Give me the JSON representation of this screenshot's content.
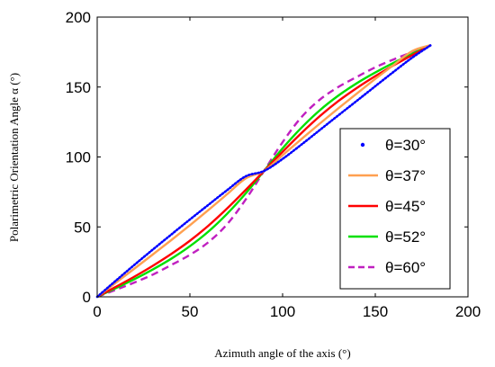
{
  "chart_data": {
    "type": "line",
    "xlabel": "Azimuth angle of the axis (°)",
    "ylabel": "Polarimetric Orientation Angle α (°)",
    "xlim": [
      0,
      200
    ],
    "ylim": [
      0,
      200
    ],
    "xticks": [
      "0",
      "50",
      "100",
      "150",
      "200"
    ],
    "yticks": [
      "0",
      "50",
      "100",
      "150",
      "200"
    ],
    "grid": false,
    "legend_position": "right",
    "x": [
      0,
      10,
      20,
      30,
      40,
      50,
      60,
      70,
      80,
      90,
      100,
      110,
      120,
      130,
      140,
      150,
      160,
      170,
      180
    ],
    "series": [
      {
        "name": "θ=30°",
        "theta": 30,
        "color": "#0000ff",
        "style": "dots",
        "values": [
          0,
          11.5,
          22.8,
          33.8,
          44.6,
          55.3,
          65.8,
          76.2,
          86.1,
          90,
          98.6,
          108.7,
          119.2,
          129.7,
          140.1,
          150.6,
          161.0,
          171.1,
          180
        ]
      },
      {
        "name": "θ=37°",
        "theta": 37,
        "color": "#ffa050",
        "style": "solid",
        "values": [
          0,
          10.0,
          20.1,
          30.3,
          40.6,
          51.2,
          62.1,
          73.3,
          84.6,
          90,
          101.3,
          112.6,
          123.8,
          134.7,
          145.3,
          155.8,
          165.9,
          175.8,
          180
        ]
      },
      {
        "name": "θ=45°",
        "theta": 45,
        "color": "#ff0000",
        "style": "solid",
        "values": [
          0,
          7.1,
          14.4,
          22.2,
          30.7,
          40.1,
          50.9,
          63.1,
          76.3,
          90,
          103.7,
          116.9,
          129.1,
          139.9,
          149.3,
          157.8,
          165.6,
          172.9,
          180
        ]
      },
      {
        "name": "θ=52°",
        "theta": 52,
        "color": "#00e000",
        "style": "solid",
        "values": [
          0,
          6.2,
          12.6,
          19.6,
          27.3,
          36.2,
          46.7,
          59.3,
          73.8,
          90,
          106.2,
          120.7,
          133.3,
          143.8,
          152.7,
          160.4,
          167.4,
          173.8,
          180
        ]
      },
      {
        "name": "θ=60°",
        "theta": 60,
        "color": "#c020c0",
        "style": "dashed",
        "values": [
          0,
          5.0,
          10.2,
          15.9,
          22.8,
          30.0,
          39.1,
          51.8,
          69.4,
          90,
          110.6,
          128.2,
          140.9,
          150.0,
          157.2,
          164.1,
          169.8,
          175.0,
          180
        ]
      }
    ]
  }
}
